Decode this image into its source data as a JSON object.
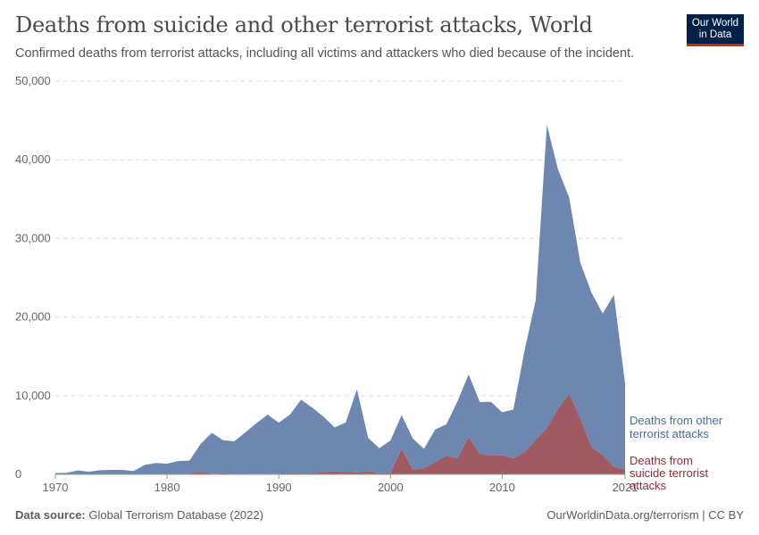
{
  "header": {
    "title": "Deaths from suicide and other terrorist attacks, World",
    "subtitle": "Confirmed deaths from terrorist attacks, including all victims and attackers who died because of the incident.",
    "logo_text": "Our World in Data"
  },
  "footer": {
    "source_label": "Data source:",
    "source_value": "Global Terrorism Database (2022)",
    "link": "OurWorldinData.org/terrorism | CC BY"
  },
  "colors": {
    "other": "#6d87b0",
    "suicide": "#a05a62",
    "other_label": "#4c6a9c",
    "suicide_label": "#8e2c38",
    "logo_bg": "#002147",
    "logo_accent": "#ce261e"
  },
  "chart_data": {
    "type": "area",
    "stacked": true,
    "title": "Deaths from suicide and other terrorist attacks, World",
    "xlabel": "",
    "ylabel": "",
    "xlim": [
      1970,
      2021
    ],
    "ylim": [
      0,
      50000
    ],
    "grid": "horizontal dashed",
    "legend": "right, inline labels",
    "x_ticks": [
      "1970",
      "1980",
      "1990",
      "2000",
      "2010",
      "2021"
    ],
    "y_ticks": [
      "0",
      "10,000",
      "20,000",
      "30,000",
      "40,000",
      "50,000"
    ],
    "x": [
      1970,
      1971,
      1972,
      1973,
      1974,
      1975,
      1976,
      1977,
      1978,
      1979,
      1980,
      1981,
      1982,
      1983,
      1984,
      1985,
      1986,
      1987,
      1988,
      1989,
      1990,
      1991,
      1992,
      1993,
      1994,
      1995,
      1996,
      1997,
      1998,
      1999,
      2000,
      2001,
      2002,
      2003,
      2004,
      2005,
      2006,
      2007,
      2008,
      2009,
      2010,
      2011,
      2012,
      2013,
      2014,
      2015,
      2016,
      2017,
      2018,
      2019,
      2020,
      2021
    ],
    "series": [
      {
        "name": "Deaths from suicide terrorist attacks",
        "values": [
          0,
          0,
          0,
          0,
          0,
          0,
          0,
          0,
          0,
          0,
          0,
          0,
          100,
          340,
          50,
          150,
          50,
          60,
          80,
          60,
          80,
          150,
          100,
          150,
          300,
          350,
          300,
          250,
          400,
          100,
          200,
          3250,
          600,
          790,
          1550,
          2380,
          2040,
          4760,
          2570,
          2420,
          2420,
          2040,
          2800,
          4380,
          5900,
          8350,
          10250,
          7030,
          3440,
          2420,
          980,
          600
        ]
      },
      {
        "name": "Deaths from other terrorist attacks",
        "values": [
          170,
          200,
          490,
          340,
          530,
          570,
          570,
          420,
          1210,
          1440,
          1360,
          1700,
          1640,
          3510,
          5240,
          4200,
          4150,
          5270,
          6420,
          7540,
          6500,
          7450,
          9390,
          8320,
          7040,
          5620,
          6310,
          10560,
          4250,
          3220,
          4110,
          4270,
          3970,
          2460,
          4160,
          3970,
          7260,
          7940,
          6620,
          6810,
          5480,
          6200,
          12930,
          17770,
          38550,
          30430,
          24940,
          19850,
          19650,
          18030,
          21850,
          10970
        ]
      }
    ]
  }
}
